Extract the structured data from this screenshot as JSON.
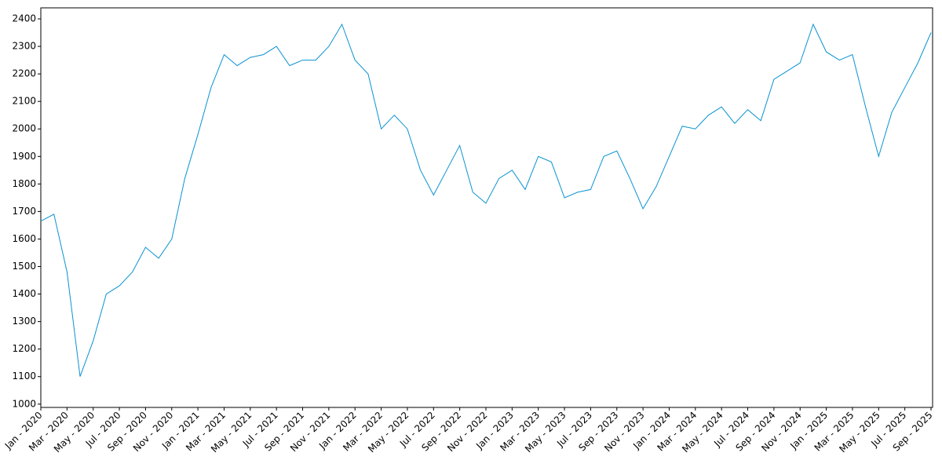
{
  "chart_data": {
    "type": "line",
    "x": [
      "2020-01",
      "2020-02",
      "2020-03",
      "2020-04",
      "2020-05",
      "2020-06",
      "2020-07",
      "2020-08",
      "2020-09",
      "2020-10",
      "2020-11",
      "2020-12",
      "2021-01",
      "2021-02",
      "2021-03",
      "2021-04",
      "2021-05",
      "2021-06",
      "2021-07",
      "2021-08",
      "2021-09",
      "2021-10",
      "2021-11",
      "2021-12",
      "2022-01",
      "2022-02",
      "2022-03",
      "2022-04",
      "2022-05",
      "2022-06",
      "2022-07",
      "2022-08",
      "2022-09",
      "2022-10",
      "2022-11",
      "2022-12",
      "2023-01",
      "2023-02",
      "2023-03",
      "2023-04",
      "2023-05",
      "2023-06",
      "2023-07",
      "2023-08",
      "2023-09",
      "2023-10",
      "2023-11",
      "2023-12",
      "2024-01",
      "2024-02",
      "2024-03",
      "2024-04",
      "2024-05",
      "2024-06",
      "2024-07",
      "2024-08",
      "2024-09",
      "2024-10",
      "2024-11",
      "2024-12",
      "2025-01",
      "2025-02",
      "2025-03",
      "2025-04",
      "2025-05",
      "2025-06",
      "2025-07",
      "2025-08",
      "2025-09"
    ],
    "series": [
      {
        "color": "#0a93d1",
        "values": [
          1665,
          1690,
          1480,
          1100,
          1230,
          1400,
          1430,
          1480,
          1570,
          1530,
          1600,
          1820,
          1980,
          2150,
          2270,
          2230,
          2260,
          2270,
          2300,
          2230,
          2250,
          2250,
          2300,
          2380,
          2250,
          2200,
          2000,
          2050,
          2000,
          1850,
          1760,
          1850,
          1940,
          1770,
          1730,
          1820,
          1850,
          1780,
          1900,
          1880,
          1750,
          1770,
          1780,
          1900,
          1920,
          1820,
          1710,
          1790,
          1900,
          2010,
          2000,
          2050,
          2080,
          2020,
          2070,
          2030,
          2180,
          2210,
          2240,
          2380,
          2280,
          2250,
          2270,
          2080,
          1900,
          2060,
          2150,
          2240,
          2350
        ]
      }
    ],
    "xlim": [
      "2020-01",
      "2025-09"
    ],
    "xticks": [
      {
        "value": "2020-01",
        "label": "Jan - 2020"
      },
      {
        "value": "2020-03",
        "label": "Mar - 2020"
      },
      {
        "value": "2020-05",
        "label": "May - 2020"
      },
      {
        "value": "2020-07",
        "label": "Jul - 2020"
      },
      {
        "value": "2020-09",
        "label": "Sep - 2020"
      },
      {
        "value": "2020-11",
        "label": "Nov - 2020"
      },
      {
        "value": "2021-01",
        "label": "Jan - 2021"
      },
      {
        "value": "2021-03",
        "label": "Mar - 2021"
      },
      {
        "value": "2021-05",
        "label": "May - 2021"
      },
      {
        "value": "2021-07",
        "label": "Jul - 2021"
      },
      {
        "value": "2021-09",
        "label": "Sep - 2021"
      },
      {
        "value": "2021-11",
        "label": "Nov - 2021"
      },
      {
        "value": "2022-01",
        "label": "Jan - 2022"
      },
      {
        "value": "2022-03",
        "label": "Mar - 2022"
      },
      {
        "value": "2022-05",
        "label": "May - 2022"
      },
      {
        "value": "2022-07",
        "label": "Jul - 2022"
      },
      {
        "value": "2022-09",
        "label": "Sep - 2022"
      },
      {
        "value": "2022-11",
        "label": "Nov - 2022"
      },
      {
        "value": "2023-01",
        "label": "Jan - 2023"
      },
      {
        "value": "2023-03",
        "label": "Mar - 2023"
      },
      {
        "value": "2023-05",
        "label": "May - 2023"
      },
      {
        "value": "2023-07",
        "label": "Jul - 2023"
      },
      {
        "value": "2023-09",
        "label": "Sep - 2023"
      },
      {
        "value": "2023-11",
        "label": "Nov - 2023"
      },
      {
        "value": "2024-01",
        "label": "Jan - 2024"
      },
      {
        "value": "2024-03",
        "label": "Mar - 2024"
      },
      {
        "value": "2024-05",
        "label": "May - 2024"
      },
      {
        "value": "2024-07",
        "label": "Jul - 2024"
      },
      {
        "value": "2024-09",
        "label": "Sep - 2024"
      },
      {
        "value": "2024-11",
        "label": "Nov - 2024"
      },
      {
        "value": "2025-01",
        "label": "Jan - 2025"
      },
      {
        "value": "2025-03",
        "label": "Mar - 2025"
      },
      {
        "value": "2025-05",
        "label": "May - 2025"
      },
      {
        "value": "2025-07",
        "label": "Jul - 2025"
      },
      {
        "value": "2025-09",
        "label": "Sep - 2025"
      }
    ],
    "ylim": [
      988,
      2440
    ],
    "yticks": [
      1000,
      1100,
      1200,
      1300,
      1400,
      1500,
      1600,
      1700,
      1800,
      1900,
      2000,
      2100,
      2200,
      2300,
      2400
    ],
    "grid": false
  }
}
